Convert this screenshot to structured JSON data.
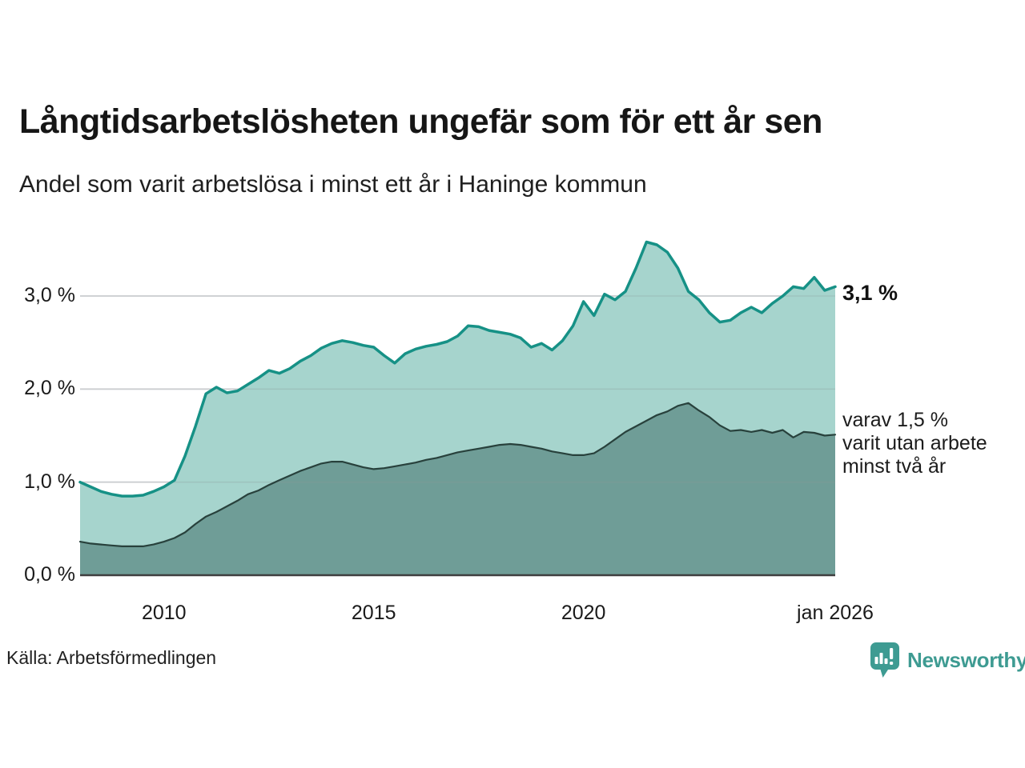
{
  "header": {
    "title": "Långtidsarbetslösheten ungefär som för ett år sen",
    "subtitle": "Andel som varit arbetslösa i minst ett år i Haninge kommun"
  },
  "annotations": {
    "latest_total": "3,1 %",
    "secondary_line1": "varav 1,5 %",
    "secondary_line2": "varit utan arbete",
    "secondary_line3": "minst två år"
  },
  "footer": {
    "source": "Källa: Arbetsförmedlingen",
    "brand": "Newsworthy"
  },
  "colors": {
    "total_line": "#169186",
    "total_fill": "#a6d4cd",
    "secondary_line": "#28413c",
    "secondary_fill": "#6f9d97",
    "grid": "#e2e2e5",
    "grid_overlay": "rgba(140,150,152,0.28)",
    "axis": "#3f3f3f",
    "text": "#1a1a1a",
    "brand_teal": "#3e9b92"
  },
  "chart_data": {
    "type": "area",
    "title": "Långtidsarbetslösheten ungefär som för ett år sen",
    "subtitle": "Andel som varit arbetslösa i minst ett år i Haninge kommun",
    "x_label": "",
    "y_label": "",
    "x_unit": "decimal year (quarterly estimates, feb 2008 - jan 2026)",
    "grid": "horizontal",
    "legend_position": "direct-labels-right",
    "ylim": [
      0,
      3.8
    ],
    "y_ticks": [
      {
        "value": 0,
        "label": "0,0 %"
      },
      {
        "value": 1,
        "label": "1,0 %"
      },
      {
        "value": 2,
        "label": "2,0 %"
      },
      {
        "value": 3,
        "label": "3,0 %"
      }
    ],
    "x_ticks": [
      {
        "value": 2010,
        "label": "2010"
      },
      {
        "value": 2015,
        "label": "2015"
      },
      {
        "value": 2020,
        "label": "2020"
      },
      {
        "value": 2026,
        "label": "jan 2026"
      }
    ],
    "x": [
      2008.0,
      2008.25,
      2008.5,
      2008.75,
      2009.0,
      2009.25,
      2009.5,
      2009.75,
      2010.0,
      2010.25,
      2010.5,
      2010.75,
      2011.0,
      2011.25,
      2011.5,
      2011.75,
      2012.0,
      2012.25,
      2012.5,
      2012.75,
      2013.0,
      2013.25,
      2013.5,
      2013.75,
      2014.0,
      2014.25,
      2014.5,
      2014.75,
      2015.0,
      2015.25,
      2015.5,
      2015.75,
      2016.0,
      2016.25,
      2016.5,
      2016.75,
      2017.0,
      2017.25,
      2017.5,
      2017.75,
      2018.0,
      2018.25,
      2018.5,
      2018.75,
      2019.0,
      2019.25,
      2019.5,
      2019.75,
      2020.0,
      2020.25,
      2020.5,
      2020.75,
      2021.0,
      2021.25,
      2021.5,
      2021.75,
      2022.0,
      2022.25,
      2022.5,
      2022.75,
      2023.0,
      2023.25,
      2023.5,
      2023.75,
      2024.0,
      2024.25,
      2024.5,
      2024.75,
      2025.0,
      2025.25,
      2025.5,
      2025.75,
      2026.0
    ],
    "series": [
      {
        "name": "Andel som varit arbetslösa i minst ett år",
        "end_label": "3,1 %",
        "values": [
          1.0,
          0.95,
          0.9,
          0.87,
          0.85,
          0.85,
          0.86,
          0.9,
          0.95,
          1.02,
          1.28,
          1.6,
          1.95,
          2.02,
          1.96,
          1.98,
          2.05,
          2.12,
          2.2,
          2.17,
          2.22,
          2.3,
          2.36,
          2.44,
          2.49,
          2.52,
          2.5,
          2.47,
          2.45,
          2.36,
          2.28,
          2.38,
          2.43,
          2.46,
          2.48,
          2.51,
          2.57,
          2.68,
          2.67,
          2.63,
          2.61,
          2.59,
          2.55,
          2.45,
          2.49,
          2.42,
          2.52,
          2.68,
          2.94,
          2.79,
          3.02,
          2.96,
          3.05,
          3.3,
          3.58,
          3.55,
          3.47,
          3.3,
          3.05,
          2.96,
          2.82,
          2.72,
          2.74,
          2.82,
          2.88,
          2.82,
          2.92,
          3.0,
          3.1,
          3.08,
          3.2,
          3.06,
          3.1
        ]
      },
      {
        "name": "varav varit utan arbete minst två år",
        "end_label": "varav 1,5 % varit utan arbete minst två år",
        "values": [
          0.36,
          0.34,
          0.33,
          0.32,
          0.31,
          0.31,
          0.31,
          0.33,
          0.36,
          0.4,
          0.46,
          0.55,
          0.63,
          0.68,
          0.74,
          0.8,
          0.87,
          0.91,
          0.97,
          1.02,
          1.07,
          1.12,
          1.16,
          1.2,
          1.22,
          1.22,
          1.19,
          1.16,
          1.14,
          1.15,
          1.17,
          1.19,
          1.21,
          1.24,
          1.26,
          1.29,
          1.32,
          1.34,
          1.36,
          1.38,
          1.4,
          1.41,
          1.4,
          1.38,
          1.36,
          1.33,
          1.31,
          1.29,
          1.29,
          1.31,
          1.38,
          1.46,
          1.54,
          1.6,
          1.66,
          1.72,
          1.76,
          1.82,
          1.85,
          1.77,
          1.7,
          1.61,
          1.55,
          1.56,
          1.54,
          1.56,
          1.53,
          1.56,
          1.48,
          1.54,
          1.53,
          1.5,
          1.51
        ]
      }
    ]
  }
}
